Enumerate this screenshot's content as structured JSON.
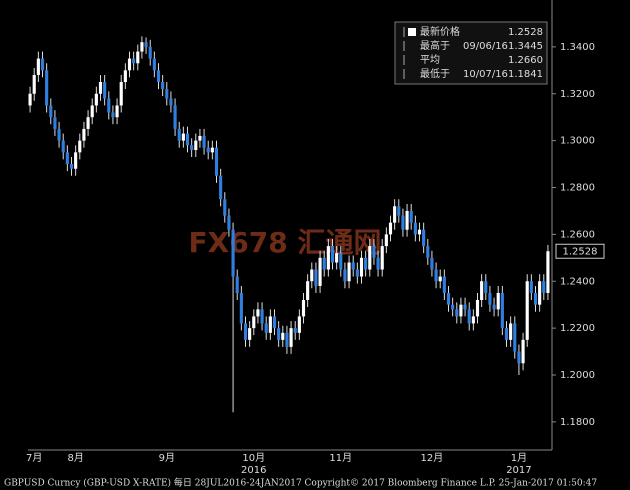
{
  "chart_data": {
    "type": "candlestick",
    "title": "GBPUSD Curncy (GBP-USD X-RATE)  每日 28JUL2016-24JAN2017 Copyright© 2017 Bloomberg Finance L.P. 25-Jan-2017 01:50:47",
    "watermark": "FX678 汇通网",
    "categories": [
      null,
      "7月",
      null,
      null,
      null,
      null,
      null,
      null,
      null,
      null,
      null,
      "8月",
      null,
      null,
      null,
      null,
      null,
      null,
      null,
      null,
      null,
      null,
      null,
      null,
      null,
      null,
      null,
      null,
      null,
      null,
      null,
      null,
      null,
      "9月",
      null,
      null,
      null,
      null,
      null,
      null,
      null,
      null,
      null,
      null,
      null,
      null,
      null,
      null,
      null,
      null,
      null,
      null,
      null,
      null,
      "10月",
      null,
      null,
      null,
      null,
      null,
      null,
      null,
      null,
      null,
      null,
      null,
      null,
      null,
      null,
      null,
      null,
      null,
      null,
      null,
      null,
      "11月",
      null,
      null,
      null,
      null,
      null,
      null,
      null,
      null,
      null,
      null,
      null,
      null,
      null,
      null,
      null,
      null,
      null,
      null,
      null,
      null,
      null,
      "12月",
      null,
      null,
      null,
      null,
      null,
      null,
      null,
      null,
      null,
      null,
      null,
      null,
      null,
      null,
      null,
      null,
      null,
      null,
      null,
      null,
      "1月",
      null,
      null,
      null,
      null,
      null,
      null,
      null
    ],
    "year_categories": [
      null,
      null,
      null,
      null,
      null,
      null,
      null,
      null,
      null,
      null,
      null,
      null,
      null,
      null,
      null,
      null,
      null,
      null,
      null,
      null,
      null,
      null,
      null,
      null,
      null,
      null,
      null,
      null,
      null,
      null,
      null,
      null,
      null,
      null,
      null,
      null,
      null,
      null,
      null,
      null,
      null,
      null,
      null,
      null,
      null,
      null,
      null,
      null,
      null,
      null,
      null,
      null,
      null,
      null,
      "2016",
      null,
      null,
      null,
      null,
      null,
      null,
      null,
      null,
      null,
      null,
      null,
      null,
      null,
      null,
      null,
      null,
      null,
      null,
      null,
      null,
      null,
      null,
      null,
      null,
      null,
      null,
      null,
      null,
      null,
      null,
      null,
      null,
      null,
      null,
      null,
      null,
      null,
      null,
      null,
      null,
      null,
      null,
      null,
      null,
      null,
      null,
      null,
      null,
      null,
      null,
      null,
      null,
      null,
      null,
      null,
      null,
      null,
      null,
      null,
      null,
      null,
      null,
      null,
      "2017",
      null,
      null,
      null,
      null,
      null,
      null,
      null
    ],
    "open": [
      1.315,
      1.32,
      1.328,
      1.335,
      1.33,
      1.315,
      1.31,
      1.305,
      1.3,
      1.295,
      1.29,
      1.288,
      1.295,
      1.3,
      1.305,
      1.31,
      1.315,
      1.32,
      1.325,
      1.318,
      1.312,
      1.31,
      1.315,
      1.325,
      1.33,
      1.335,
      1.333,
      1.338,
      1.342,
      1.34,
      1.335,
      1.33,
      1.325,
      1.322,
      1.318,
      1.315,
      1.305,
      1.3,
      1.303,
      1.298,
      1.296,
      1.3,
      1.302,
      1.297,
      1.295,
      1.297,
      1.285,
      1.275,
      1.268,
      1.262,
      1.242,
      1.235,
      1.222,
      1.215,
      1.22,
      1.225,
      1.228,
      1.222,
      1.218,
      1.225,
      1.22,
      1.215,
      1.218,
      1.212,
      1.22,
      1.218,
      1.225,
      1.232,
      1.24,
      1.245,
      1.238,
      1.25,
      1.245,
      1.255,
      1.248,
      1.252,
      1.245,
      1.24,
      1.248,
      1.245,
      1.242,
      1.25,
      1.245,
      1.255,
      1.25,
      1.245,
      1.255,
      1.26,
      1.265,
      1.272,
      1.268,
      1.262,
      1.27,
      1.265,
      1.26,
      1.262,
      1.255,
      1.25,
      1.245,
      1.24,
      1.242,
      1.235,
      1.23,
      1.228,
      1.225,
      1.23,
      1.228,
      1.222,
      1.225,
      1.232,
      1.24,
      1.235,
      1.23,
      1.228,
      1.235,
      1.22,
      1.215,
      1.222,
      1.21,
      1.205,
      1.215,
      1.24,
      1.235,
      1.23,
      1.24,
      1.235
    ],
    "high": [
      1.323,
      1.331,
      1.338,
      1.338,
      1.333,
      1.318,
      1.313,
      1.308,
      1.303,
      1.298,
      1.293,
      1.298,
      1.303,
      1.308,
      1.313,
      1.318,
      1.323,
      1.328,
      1.328,
      1.321,
      1.315,
      1.318,
      1.328,
      1.333,
      1.338,
      1.338,
      1.341,
      1.3445,
      1.344,
      1.343,
      1.338,
      1.333,
      1.328,
      1.325,
      1.321,
      1.318,
      1.308,
      1.306,
      1.306,
      1.301,
      1.303,
      1.305,
      1.305,
      1.3,
      1.3,
      1.3,
      1.288,
      1.278,
      1.271,
      1.265,
      1.245,
      1.238,
      1.225,
      1.223,
      1.228,
      1.231,
      1.231,
      1.225,
      1.228,
      1.228,
      1.223,
      1.221,
      1.221,
      1.223,
      1.223,
      1.228,
      1.235,
      1.243,
      1.248,
      1.248,
      1.253,
      1.253,
      1.258,
      1.258,
      1.255,
      1.255,
      1.248,
      1.251,
      1.251,
      1.248,
      1.253,
      1.253,
      1.258,
      1.258,
      1.253,
      1.258,
      1.263,
      1.268,
      1.275,
      1.275,
      1.271,
      1.273,
      1.273,
      1.268,
      1.265,
      1.265,
      1.258,
      1.253,
      1.248,
      1.245,
      1.245,
      1.238,
      1.233,
      1.231,
      1.233,
      1.233,
      1.231,
      1.228,
      1.235,
      1.243,
      1.243,
      1.238,
      1.233,
      1.238,
      1.238,
      1.223,
      1.225,
      1.225,
      1.213,
      1.218,
      1.243,
      1.243,
      1.238,
      1.243,
      1.243,
      1.2555
    ],
    "low": [
      1.312,
      1.317,
      1.325,
      1.327,
      1.312,
      1.307,
      1.302,
      1.297,
      1.292,
      1.287,
      1.285,
      1.285,
      1.292,
      1.297,
      1.302,
      1.307,
      1.312,
      1.317,
      1.315,
      1.309,
      1.307,
      1.307,
      1.312,
      1.322,
      1.327,
      1.33,
      1.33,
      1.335,
      1.337,
      1.332,
      1.327,
      1.322,
      1.319,
      1.315,
      1.312,
      1.302,
      1.297,
      1.297,
      1.295,
      1.293,
      1.293,
      1.297,
      1.294,
      1.292,
      1.292,
      1.282,
      1.272,
      1.265,
      1.259,
      1.1841,
      1.232,
      1.219,
      1.212,
      1.212,
      1.217,
      1.222,
      1.219,
      1.215,
      1.215,
      1.217,
      1.212,
      1.212,
      1.209,
      1.209,
      1.215,
      1.215,
      1.222,
      1.229,
      1.237,
      1.235,
      1.235,
      1.242,
      1.242,
      1.245,
      1.245,
      1.242,
      1.237,
      1.237,
      1.242,
      1.239,
      1.239,
      1.242,
      1.242,
      1.247,
      1.242,
      1.242,
      1.252,
      1.257,
      1.262,
      1.265,
      1.259,
      1.259,
      1.262,
      1.257,
      1.257,
      1.252,
      1.247,
      1.242,
      1.237,
      1.237,
      1.232,
      1.227,
      1.225,
      1.222,
      1.222,
      1.225,
      1.219,
      1.219,
      1.222,
      1.229,
      1.232,
      1.227,
      1.225,
      1.225,
      1.217,
      1.212,
      1.212,
      1.207,
      1.2,
      1.202,
      1.212,
      1.232,
      1.227,
      1.227,
      1.232,
      1.232
    ],
    "close": [
      1.32,
      1.328,
      1.335,
      1.33,
      1.315,
      1.31,
      1.305,
      1.3,
      1.295,
      1.29,
      1.288,
      1.295,
      1.3,
      1.305,
      1.31,
      1.315,
      1.32,
      1.325,
      1.318,
      1.312,
      1.31,
      1.315,
      1.325,
      1.33,
      1.335,
      1.333,
      1.338,
      1.342,
      1.34,
      1.335,
      1.33,
      1.325,
      1.322,
      1.318,
      1.315,
      1.305,
      1.3,
      1.303,
      1.298,
      1.296,
      1.3,
      1.302,
      1.297,
      1.295,
      1.297,
      1.285,
      1.275,
      1.268,
      1.262,
      1.242,
      1.235,
      1.222,
      1.215,
      1.22,
      1.225,
      1.228,
      1.222,
      1.218,
      1.225,
      1.22,
      1.215,
      1.218,
      1.212,
      1.22,
      1.218,
      1.225,
      1.232,
      1.24,
      1.245,
      1.238,
      1.25,
      1.245,
      1.255,
      1.248,
      1.252,
      1.245,
      1.24,
      1.248,
      1.245,
      1.242,
      1.25,
      1.245,
      1.255,
      1.25,
      1.245,
      1.255,
      1.26,
      1.265,
      1.272,
      1.268,
      1.262,
      1.27,
      1.265,
      1.26,
      1.262,
      1.255,
      1.25,
      1.245,
      1.24,
      1.242,
      1.235,
      1.23,
      1.228,
      1.225,
      1.23,
      1.228,
      1.222,
      1.225,
      1.232,
      1.24,
      1.235,
      1.23,
      1.228,
      1.235,
      1.22,
      1.215,
      1.222,
      1.21,
      1.205,
      1.215,
      1.24,
      1.235,
      1.23,
      1.24,
      1.235,
      1.2528
    ],
    "up_color": "#ffffff",
    "down_color": "#2f7fe0",
    "ylim": [
      1.168,
      1.36
    ],
    "yticks": [
      {
        "value": 1.18,
        "label": "1.1800"
      },
      {
        "value": 1.2,
        "label": "1.2000"
      },
      {
        "value": 1.22,
        "label": "1.2200"
      },
      {
        "value": 1.24,
        "label": "1.2400"
      },
      {
        "value": 1.26,
        "label": "1.2600"
      },
      {
        "value": 1.28,
        "label": "1.2800"
      },
      {
        "value": 1.3,
        "label": "1.3000"
      },
      {
        "value": 1.32,
        "label": "1.3200"
      },
      {
        "value": 1.34,
        "label": "1.3400"
      }
    ],
    "stats": [
      {
        "name": "最新价格",
        "date": null,
        "value": "1.2528"
      },
      {
        "name": "最高于",
        "date": "09/06/16",
        "value": "1.3445"
      },
      {
        "name": "平均",
        "date": null,
        "value": "1.2660"
      },
      {
        "name": "最低于",
        "date": "10/07/16",
        "value": "1.1841"
      }
    ]
  }
}
